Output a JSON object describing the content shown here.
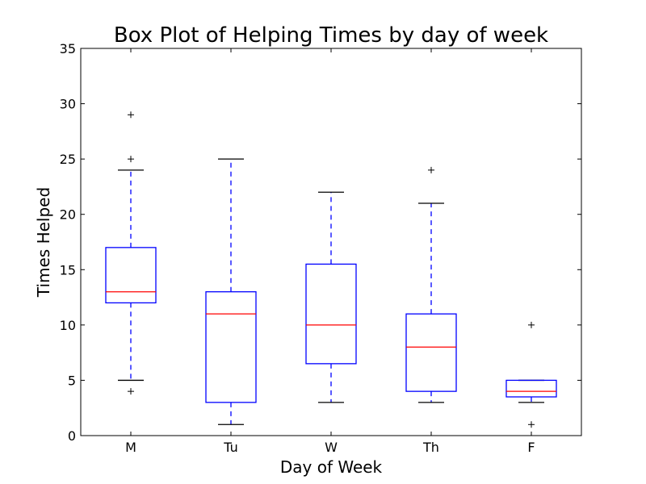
{
  "chart_data": {
    "type": "box",
    "title": "Box Plot of Helping Times by day of week",
    "xlabel": "Day of Week",
    "ylabel": "Times Helped",
    "ylim": [
      0,
      35
    ],
    "yticks": [
      0,
      5,
      10,
      15,
      20,
      25,
      30,
      35
    ],
    "grid": false,
    "categories": [
      "M",
      "Tu",
      "W",
      "Th",
      "F"
    ],
    "boxes": [
      {
        "whisker_low": 5,
        "q1": 12,
        "median": 13,
        "q3": 17,
        "whisker_high": 24,
        "outliers": [
          4,
          25,
          29
        ]
      },
      {
        "whisker_low": 1,
        "q1": 3,
        "median": 11,
        "q3": 13,
        "whisker_high": 25,
        "outliers": []
      },
      {
        "whisker_low": 3,
        "q1": 6.5,
        "median": 10,
        "q3": 15.5,
        "whisker_high": 22,
        "outliers": []
      },
      {
        "whisker_low": 3,
        "q1": 4,
        "median": 8,
        "q3": 11,
        "whisker_high": 21,
        "outliers": [
          24
        ]
      },
      {
        "whisker_low": 3,
        "q1": 3.5,
        "median": 4,
        "q3": 5,
        "whisker_high": 5,
        "outliers": [
          1,
          10
        ]
      }
    ],
    "colors": {
      "box": "#0000ff",
      "median": "#ff0000",
      "cap": "#000000",
      "outlier": "#000000"
    }
  }
}
